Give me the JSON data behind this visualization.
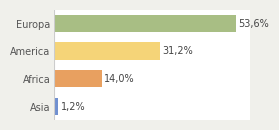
{
  "categories": [
    "Europa",
    "America",
    "Africa",
    "Asia"
  ],
  "values": [
    53.6,
    31.2,
    14.0,
    1.2
  ],
  "labels": [
    "53,6%",
    "31,2%",
    "14,0%",
    "1,2%"
  ],
  "bar_colors": [
    "#a8be84",
    "#f5d478",
    "#e8a060",
    "#7090d0"
  ],
  "background_color": "#f0f0eb",
  "plot_bg_color": "#ffffff",
  "xlim": [
    0,
    58
  ],
  "bar_height": 0.62,
  "label_fontsize": 7,
  "tick_fontsize": 7,
  "label_color": "#444444",
  "tick_color": "#555555"
}
